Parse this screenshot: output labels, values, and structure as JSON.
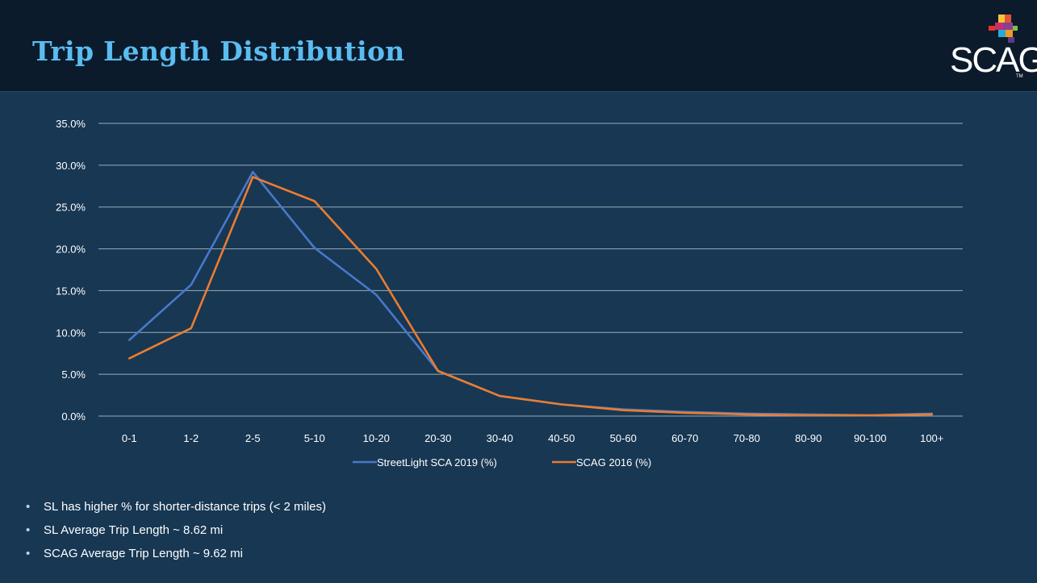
{
  "header": {
    "title": "Trip Length Distribution"
  },
  "logo": {
    "text": "SCAG",
    "tm": "TM"
  },
  "chart_data": {
    "type": "line",
    "categories": [
      "0-1",
      "1-2",
      "2-5",
      "5-10",
      "10-20",
      "20-30",
      "30-40",
      "40-50",
      "50-60",
      "60-70",
      "70-80",
      "80-90",
      "90-100",
      "100+"
    ],
    "series": [
      {
        "name": "StreetLight SCA 2019 (%)",
        "color": "#4a78c9",
        "values": [
          9.1,
          15.7,
          29.2,
          20.1,
          14.5,
          5.4,
          2.4,
          1.4,
          0.8,
          0.5,
          0.3,
          0.2,
          0.1,
          0.3
        ]
      },
      {
        "name": "SCAG 2016 (%)",
        "color": "#ec7c30",
        "values": [
          6.9,
          10.5,
          28.6,
          25.7,
          17.6,
          5.4,
          2.4,
          1.4,
          0.7,
          0.4,
          0.2,
          0.1,
          0.1,
          0.2
        ]
      }
    ],
    "yticks": [
      "0.0%",
      "5.0%",
      "10.0%",
      "15.0%",
      "20.0%",
      "25.0%",
      "30.0%",
      "35.0%"
    ],
    "ylim": [
      0,
      35
    ],
    "grid": true,
    "legend": "bottom"
  },
  "bullets": [
    "SL has higher % for shorter-distance trips (< 2 miles)",
    "SL Average Trip Length ~ 8.62 mi",
    "SCAG Average Trip Length ~ 9.62 mi"
  ],
  "bullet_glyph": "•"
}
